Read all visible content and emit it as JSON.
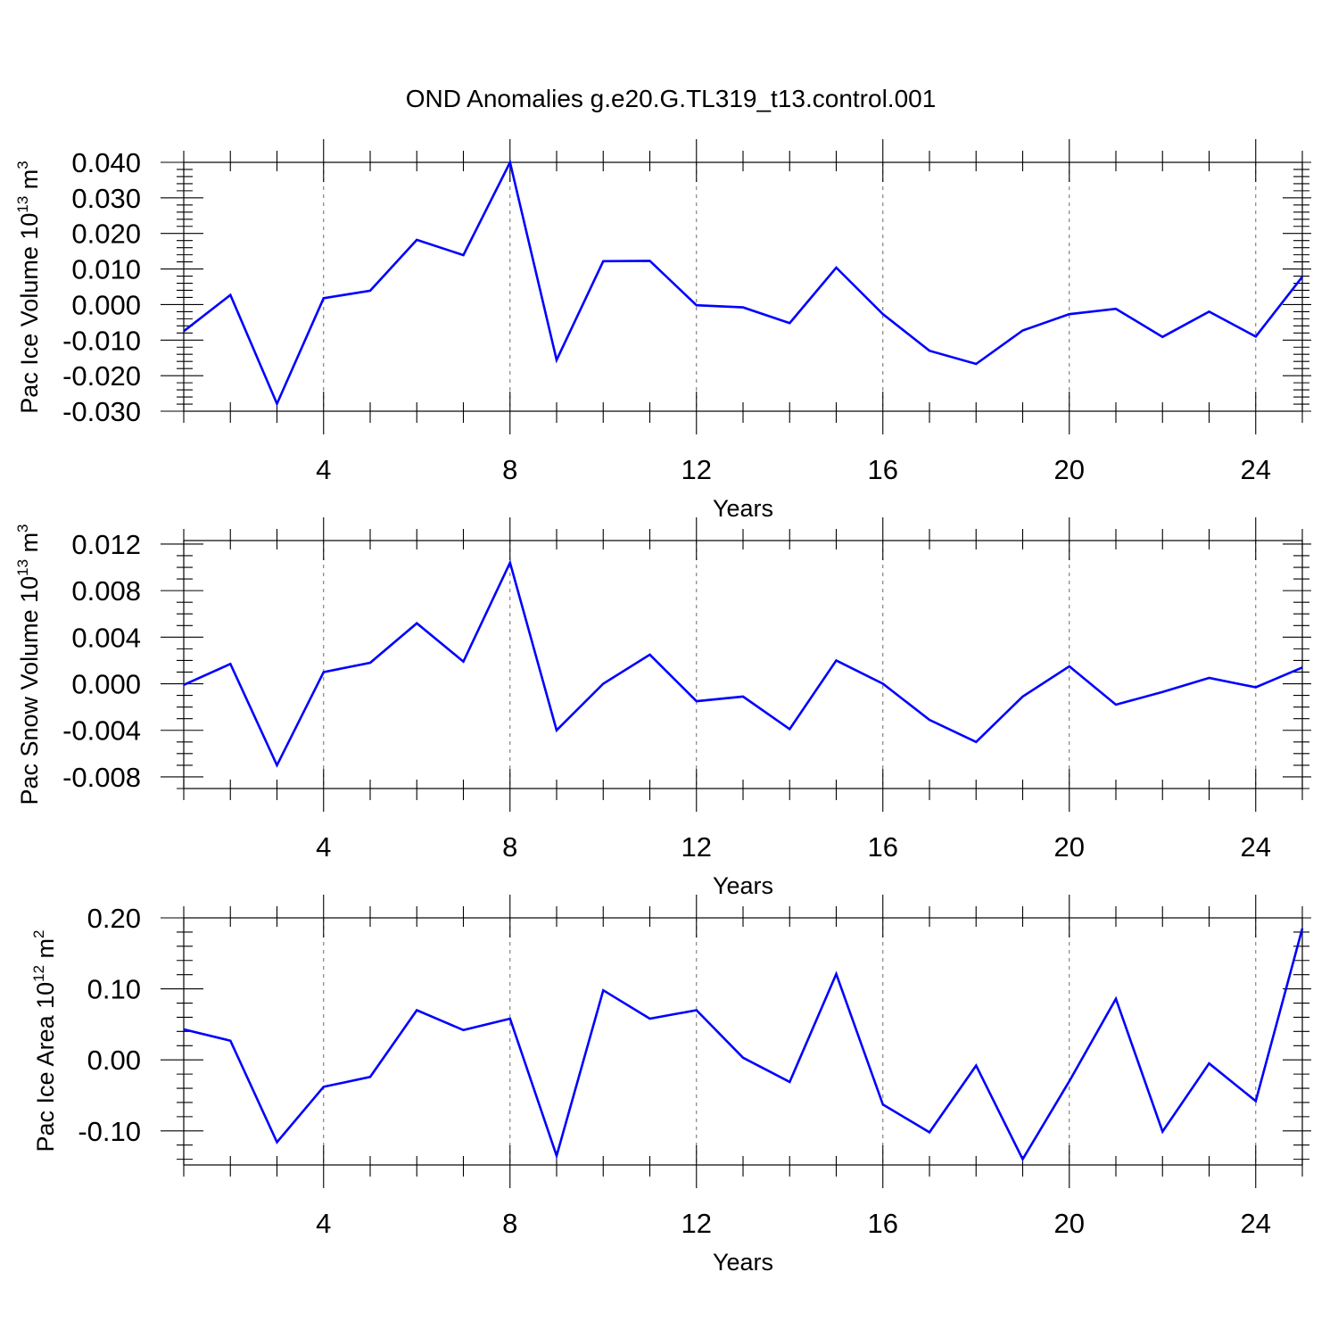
{
  "figure": {
    "title": "OND Anomalies g.e20.G.TL319_t13.control.001",
    "line_color": "#0000ff"
  },
  "chart_data": [
    {
      "type": "line",
      "id": "ice-volume",
      "title": "",
      "xlabel": "Years",
      "ylabel": {
        "prefix": "Pac Ice Volume 10",
        "exp1": "13",
        "unit": " m",
        "exp2": "3"
      },
      "xlim": [
        1,
        25
      ],
      "xticks": [
        4,
        8,
        12,
        16,
        20,
        24
      ],
      "xtick_labels": [
        "4",
        "8",
        "12",
        "16",
        "20",
        "24"
      ],
      "ylim": [
        -0.03,
        0.04
      ],
      "yticks": [
        -0.03,
        -0.02,
        -0.01,
        0.0,
        0.01,
        0.02,
        0.03,
        0.04
      ],
      "ytick_labels": [
        "-0.030",
        "-0.020",
        "-0.010",
        "0.000",
        "0.010",
        "0.020",
        "0.030",
        "0.040"
      ],
      "yminor_step": 0.002,
      "grid": "vertical dashed at major x ticks",
      "series": [
        {
          "name": "Pac Ice Volume",
          "x": [
            1,
            2,
            3,
            4,
            5,
            6,
            7,
            8,
            9,
            10,
            11,
            12,
            13,
            14,
            15,
            16,
            17,
            18,
            19,
            20,
            21,
            22,
            23,
            24,
            25
          ],
          "values": [
            -0.0075,
            0.0027,
            -0.0279,
            0.0018,
            0.0039,
            0.0182,
            0.0139,
            0.04,
            -0.0156,
            0.0122,
            0.0123,
            -0.0002,
            -0.0008,
            -0.0052,
            0.0104,
            -0.0027,
            -0.013,
            -0.0167,
            -0.0073,
            -0.0027,
            -0.0012,
            -0.0091,
            -0.002,
            -0.009,
            0.0078
          ]
        }
      ]
    },
    {
      "type": "line",
      "id": "snow-volume",
      "title": "",
      "xlabel": "Years",
      "ylabel": {
        "prefix": "Pac Snow Volume 10",
        "exp1": "13",
        "unit": " m",
        "exp2": "3"
      },
      "xlim": [
        1,
        25
      ],
      "xticks": [
        4,
        8,
        12,
        16,
        20,
        24
      ],
      "xtick_labels": [
        "4",
        "8",
        "12",
        "16",
        "20",
        "24"
      ],
      "ylim": [
        -0.009,
        0.0123
      ],
      "yticks": [
        -0.008,
        -0.004,
        0.0,
        0.004,
        0.008,
        0.012
      ],
      "ytick_labels": [
        "-0.008",
        "-0.004",
        "0.000",
        "0.004",
        "0.008",
        "0.012"
      ],
      "yminor_step": 0.001,
      "grid": "vertical dashed at major x ticks",
      "series": [
        {
          "name": "Pac Snow Volume",
          "x": [
            1,
            2,
            3,
            4,
            5,
            6,
            7,
            8,
            9,
            10,
            11,
            12,
            13,
            14,
            15,
            16,
            17,
            18,
            19,
            20,
            21,
            22,
            23,
            24,
            25
          ],
          "values": [
            -0.0001,
            0.0017,
            -0.007,
            0.001,
            0.0018,
            0.0052,
            0.0019,
            0.0104,
            -0.004,
            0.0,
            0.0025,
            -0.0015,
            -0.0011,
            -0.0039,
            0.002,
            0.0,
            -0.0031,
            -0.005,
            -0.0011,
            0.0015,
            -0.0018,
            -0.0007,
            0.0005,
            -0.0003,
            0.0014
          ]
        }
      ]
    },
    {
      "type": "line",
      "id": "ice-area",
      "title": "",
      "xlabel": "Years",
      "ylabel": {
        "prefix": "Pac Ice Area 10",
        "exp1": "12",
        "unit": " m",
        "exp2": "2"
      },
      "xlim": [
        1,
        25
      ],
      "xticks": [
        4,
        8,
        12,
        16,
        20,
        24
      ],
      "xtick_labels": [
        "4",
        "8",
        "12",
        "16",
        "20",
        "24"
      ],
      "ylim": [
        -0.148,
        0.2
      ],
      "yticks": [
        -0.1,
        0.0,
        0.1,
        0.2
      ],
      "ytick_labels": [
        "-0.10",
        "0.00",
        "0.10",
        "0.20"
      ],
      "yminor_step": 0.02,
      "grid": "vertical dashed at major x ticks",
      "series": [
        {
          "name": "Pac Ice Area",
          "x": [
            1,
            2,
            3,
            4,
            5,
            6,
            7,
            8,
            9,
            10,
            11,
            12,
            13,
            14,
            15,
            16,
            17,
            18,
            19,
            20,
            21,
            22,
            23,
            24,
            25
          ],
          "values": [
            0.043,
            0.027,
            -0.116,
            -0.038,
            -0.024,
            0.07,
            0.042,
            0.058,
            -0.135,
            0.098,
            0.058,
            0.07,
            0.003,
            -0.031,
            0.121,
            -0.063,
            -0.102,
            -0.008,
            -0.14,
            -0.03,
            0.086,
            -0.101,
            -0.005,
            -0.058,
            0.185
          ]
        }
      ]
    }
  ]
}
